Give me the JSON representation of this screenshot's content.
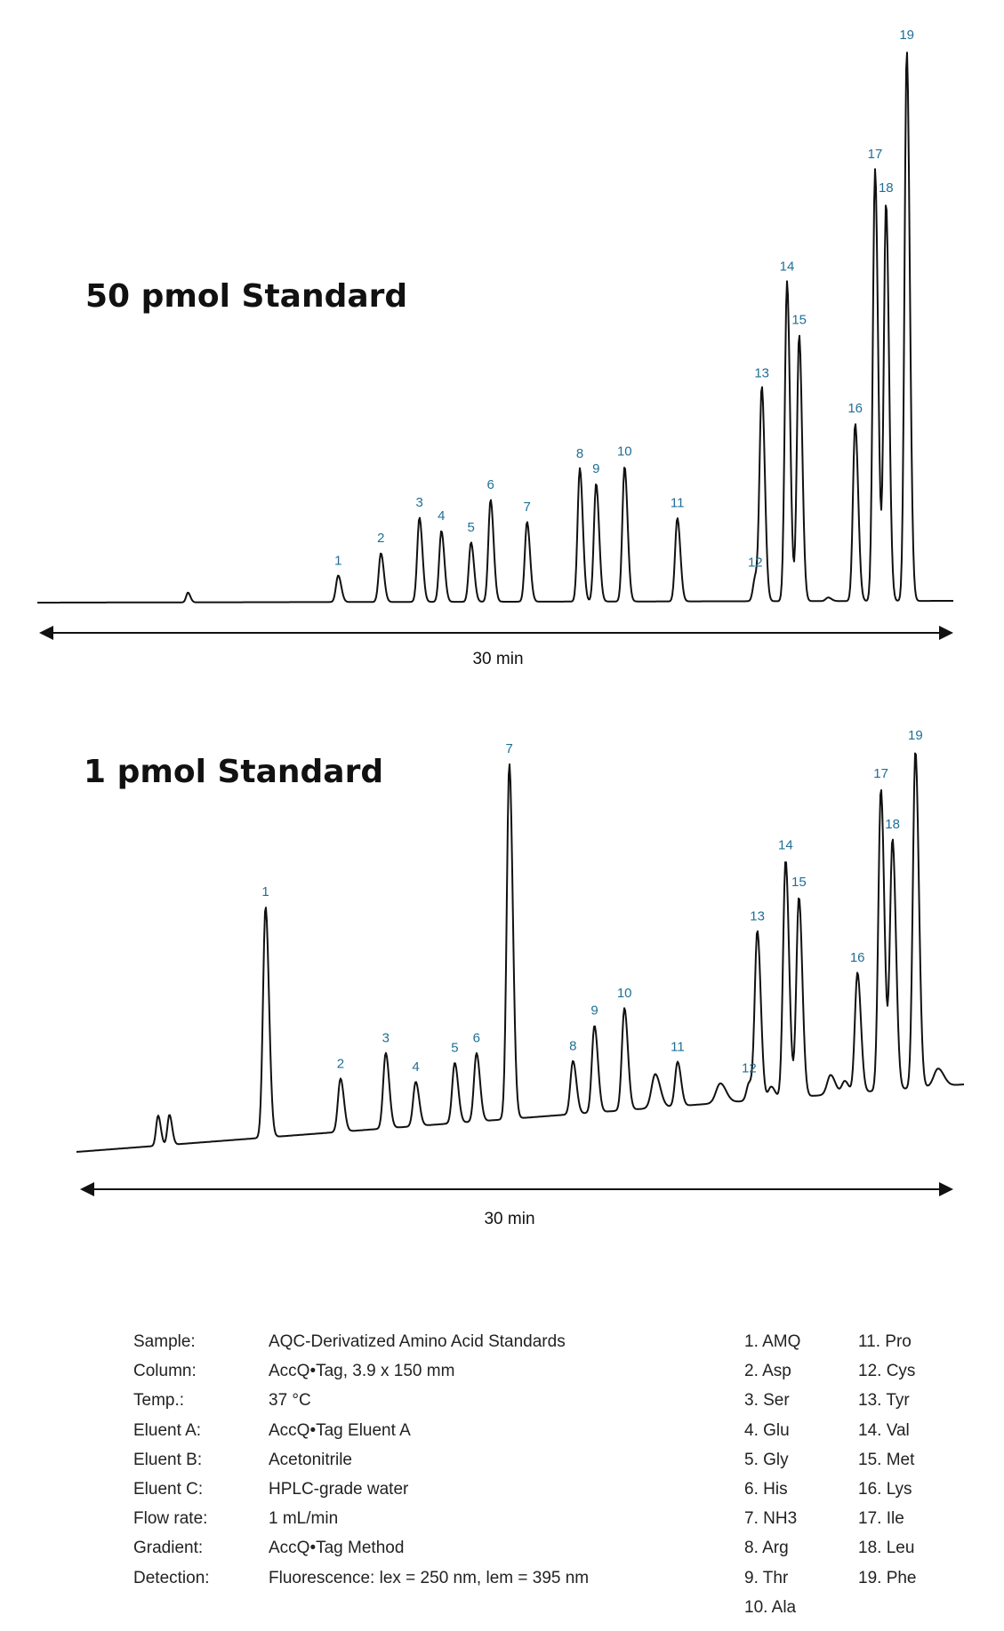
{
  "chart_data": [
    {
      "type": "line",
      "title": "50 pmol Standard",
      "xlabel": "30 min",
      "x_span_min": 30,
      "peaks": [
        {
          "label": "1",
          "x": 9.67,
          "height": 30
        },
        {
          "label": "2",
          "x": 11.11,
          "height": 55
        },
        {
          "label": "3",
          "x": 12.41,
          "height": 95
        },
        {
          "label": "4",
          "x": 13.15,
          "height": 80
        },
        {
          "label": "5",
          "x": 14.15,
          "height": 67
        },
        {
          "label": "6",
          "x": 14.81,
          "height": 115
        },
        {
          "label": "7",
          "x": 16.04,
          "height": 90
        },
        {
          "label": "8",
          "x": 17.82,
          "height": 150
        },
        {
          "label": "9",
          "x": 18.37,
          "height": 133
        },
        {
          "label": "10",
          "x": 19.33,
          "height": 152
        },
        {
          "label": "11",
          "x": 21.11,
          "height": 94
        },
        {
          "label": "12",
          "x": 23.74,
          "height": 27
        },
        {
          "label": "13",
          "x": 23.96,
          "height": 240
        },
        {
          "label": "14",
          "x": 24.81,
          "height": 360
        },
        {
          "label": "15",
          "x": 25.22,
          "height": 300
        },
        {
          "label": "16",
          "x": 27.11,
          "height": 200
        },
        {
          "label": "17",
          "x": 27.78,
          "height": 486
        },
        {
          "label": "18",
          "x": 28.15,
          "height": 448
        },
        {
          "label": "19",
          "x": 28.85,
          "height": 620
        }
      ]
    },
    {
      "type": "line",
      "title": "1 pmol Standard",
      "xlabel": "30 min",
      "x_span_min": 30,
      "peaks": [
        {
          "label": "1",
          "x": 6.12,
          "height": 260
        },
        {
          "label": "2",
          "x": 8.77,
          "height": 60
        },
        {
          "label": "3",
          "x": 10.37,
          "height": 85
        },
        {
          "label": "4",
          "x": 11.43,
          "height": 50
        },
        {
          "label": "5",
          "x": 12.81,
          "height": 68
        },
        {
          "label": "6",
          "x": 13.58,
          "height": 77
        },
        {
          "label": "7",
          "x": 14.74,
          "height": 400
        },
        {
          "label": "8",
          "x": 16.99,
          "height": 60
        },
        {
          "label": "9",
          "x": 17.75,
          "height": 98
        },
        {
          "label": "10",
          "x": 18.81,
          "height": 115
        },
        {
          "label": "11",
          "x": 20.69,
          "height": 50
        },
        {
          "label": "12",
          "x": 23.22,
          "height": 20
        },
        {
          "label": "13",
          "x": 23.51,
          "height": 190
        },
        {
          "label": "14",
          "x": 24.51,
          "height": 268
        },
        {
          "label": "15",
          "x": 24.98,
          "height": 225
        },
        {
          "label": "16",
          "x": 27.05,
          "height": 135
        },
        {
          "label": "17",
          "x": 27.88,
          "height": 340
        },
        {
          "label": "18",
          "x": 28.29,
          "height": 282
        },
        {
          "label": "19",
          "x": 29.1,
          "height": 380
        }
      ]
    }
  ],
  "conditions": [
    {
      "key": "Sample:",
      "value": "AQC-Derivatized Amino Acid Standards"
    },
    {
      "key": "Column:",
      "value": "AccQ•Tag, 3.9 x 150 mm"
    },
    {
      "key": "Temp.:",
      "value": "37 °C"
    },
    {
      "key": "Eluent A:",
      "value": "AccQ•Tag Eluent A"
    },
    {
      "key": "Eluent B:",
      "value": "Acetonitrile"
    },
    {
      "key": "Eluent C:",
      "value": "HPLC-grade water"
    },
    {
      "key": "Flow rate:",
      "value": "1 mL/min"
    },
    {
      "key": "Gradient:",
      "value": "AccQ•Tag Method"
    },
    {
      "key": "Detection:",
      "value": "Fluorescence: lex = 250 nm, lem = 395 nm"
    }
  ],
  "peak_names_left": [
    "1. AMQ",
    "2. Asp",
    "3. Ser",
    "4. Glu",
    "5. Gly",
    "6. His",
    "7. NH3",
    "8. Arg",
    "9. Thr",
    "10. Ala"
  ],
  "peak_names_right": [
    "11. Pro",
    "12. Cys",
    "13. Tyr",
    "14. Val",
    "15. Met",
    "16. Lys",
    "17. Ile",
    "18. Leu",
    "19. Phe"
  ]
}
